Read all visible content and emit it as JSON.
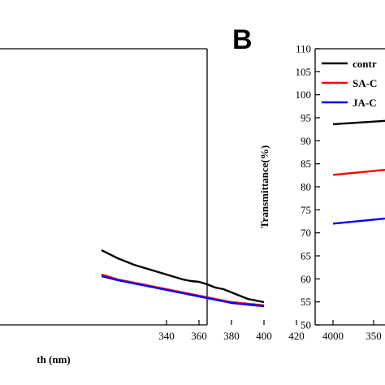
{
  "chart_data": [
    {
      "panel_label": "",
      "type": "line",
      "title": "",
      "xlabel": "th (nm)",
      "ylabel": "",
      "xlim": [
        300,
        420
      ],
      "x_ticks": [
        "340",
        "360",
        "380",
        "400",
        "420"
      ],
      "grid": false,
      "series": [
        {
          "color": "#000000",
          "x": [
            300,
            310,
            320,
            330,
            340,
            350,
            355,
            360,
            365,
            370,
            375,
            380,
            390,
            400
          ],
          "values": [
            0.92,
            0.82,
            0.74,
            0.68,
            0.62,
            0.56,
            0.54,
            0.53,
            0.5,
            0.46,
            0.44,
            0.4,
            0.32,
            0.28
          ]
        },
        {
          "color": "#ff0000",
          "x": [
            300,
            310,
            320,
            330,
            340,
            350,
            360,
            370,
            380,
            390,
            400
          ],
          "values": [
            0.62,
            0.56,
            0.52,
            0.48,
            0.44,
            0.4,
            0.36,
            0.32,
            0.28,
            0.26,
            0.24
          ]
        },
        {
          "color": "#0000ff",
          "x": [
            300,
            310,
            320,
            330,
            340,
            350,
            360,
            370,
            380,
            390,
            400
          ],
          "values": [
            0.6,
            0.55,
            0.51,
            0.47,
            0.43,
            0.39,
            0.35,
            0.31,
            0.27,
            0.25,
            0.23
          ]
        }
      ]
    },
    {
      "panel_label": "B",
      "type": "line",
      "title": "",
      "xlabel": "",
      "ylabel": "Transmittance(%)",
      "ylim": [
        50,
        110
      ],
      "y_ticks": [
        "110",
        "105",
        "100",
        "95",
        "90",
        "85",
        "80",
        "75",
        "70",
        "65",
        "60",
        "55",
        "50"
      ],
      "x_ticks": [
        "4000",
        "350"
      ],
      "grid": false,
      "legend_position": "top-right",
      "series": [
        {
          "name": "contr",
          "color": "#000000",
          "x": [
            4000,
            3900,
            3800,
            3700,
            3600,
            3500,
            3450,
            3400
          ],
          "values": [
            93.6,
            94.0,
            94.4,
            94.6,
            93.0,
            88.0,
            82.0,
            78.0
          ]
        },
        {
          "name": "SA-C",
          "color": "#ff0000",
          "x": [
            4000,
            3900,
            3800,
            3700,
            3600,
            3500,
            3450,
            3400
          ],
          "values": [
            82.6,
            83.2,
            83.8,
            84.0,
            82.0,
            77.0,
            72.0,
            68.0
          ]
        },
        {
          "name": "JA-C",
          "color": "#0000ff",
          "x": [
            4000,
            3900,
            3800,
            3700,
            3600,
            3500,
            3450,
            3400
          ],
          "values": [
            72.0,
            72.6,
            73.2,
            73.4,
            71.0,
            66.0,
            61.0,
            57.0
          ]
        }
      ]
    }
  ]
}
